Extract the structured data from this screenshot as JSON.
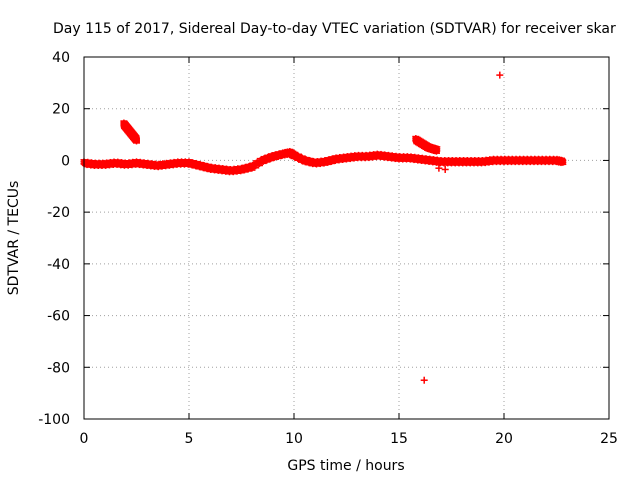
{
  "chart_data": {
    "type": "scatter",
    "title": "Day 115 of 2017, Sidereal Day-to-day VTEC variation (SDTVAR) for receiver skar",
    "xlabel": "GPS time / hours",
    "ylabel": "SDTVAR / TECUs",
    "xlim": [
      0,
      25
    ],
    "ylim": [
      -100,
      40
    ],
    "xticks": [
      0,
      5,
      10,
      15,
      20,
      25
    ],
    "xtick_labels": [
      "0",
      "5",
      "10",
      "15",
      "20",
      "25"
    ],
    "yticks": [
      -100,
      -80,
      -60,
      -40,
      -20,
      0,
      20,
      40
    ],
    "ytick_labels": [
      "-100",
      "-80",
      "-60",
      "-40",
      "-20",
      "0",
      "20",
      "40"
    ],
    "grid": true,
    "legend": "none",
    "marker": "+",
    "color": "#ff0000",
    "series": [
      {
        "name": "main-trace",
        "x": [
          0.0,
          0.5,
          1.0,
          1.5,
          2.0,
          2.5,
          3.0,
          3.5,
          4.0,
          4.5,
          5.0,
          5.5,
          6.0,
          6.5,
          7.0,
          7.5,
          8.0,
          8.5,
          9.0,
          9.5,
          9.8,
          10.0,
          10.5,
          11.0,
          11.5,
          12.0,
          12.5,
          13.0,
          13.5,
          14.0,
          14.5,
          15.0,
          15.5,
          16.0,
          16.5,
          17.0,
          17.5,
          18.0,
          18.5,
          19.0,
          19.5,
          20.0,
          20.5,
          21.0,
          21.5,
          22.0,
          22.5,
          22.8
        ],
        "y": [
          -1.0,
          -1.5,
          -1.5,
          -1.0,
          -1.5,
          -1.0,
          -1.5,
          -2.0,
          -1.5,
          -1.0,
          -1.0,
          -2.0,
          -3.0,
          -3.5,
          -4.0,
          -3.5,
          -2.5,
          0.0,
          1.5,
          2.5,
          3.0,
          2.0,
          0.0,
          -1.0,
          -0.5,
          0.5,
          1.0,
          1.5,
          1.5,
          2.0,
          1.5,
          1.0,
          1.0,
          0.5,
          0.0,
          -0.5,
          -0.5,
          -0.5,
          -0.5,
          -0.5,
          0.0,
          0.0,
          0.0,
          0.0,
          0.0,
          0.0,
          0.0,
          -0.5
        ]
      },
      {
        "name": "arc-early",
        "x": [
          1.9,
          2.0,
          2.1,
          2.2,
          2.3,
          2.4,
          2.5
        ],
        "y": [
          14.0,
          13.0,
          12.0,
          11.0,
          10.0,
          9.0,
          8.0
        ]
      },
      {
        "name": "arc-late",
        "x": [
          15.8,
          16.0,
          16.2,
          16.4,
          16.6,
          16.8
        ],
        "y": [
          8.0,
          7.0,
          6.0,
          5.0,
          4.5,
          4.0
        ]
      },
      {
        "name": "outliers",
        "x": [
          16.2,
          19.8,
          16.9,
          17.2
        ],
        "y": [
          -85.0,
          33.0,
          -3.0,
          -3.5
        ]
      }
    ]
  }
}
